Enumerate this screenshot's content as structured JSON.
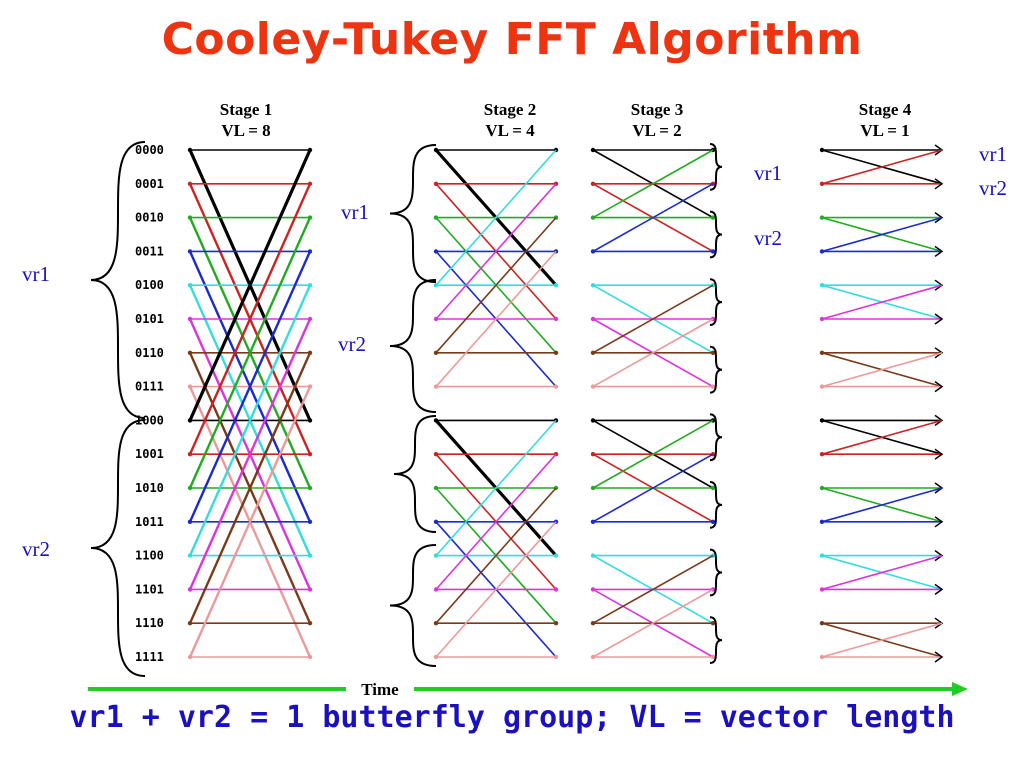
{
  "title": "Cooley-Tukey FFT Algorithm",
  "caption": "vr1 + vr2 = 1 butterfly group; VL = vector length",
  "time_label": "Time",
  "colors": {
    "title": "#ee3311",
    "caption": "#1a10c0",
    "register_label": "#1a10c0",
    "time_arrow": "#22cc22",
    "row_pairs": [
      "#000000",
      "#cc2222",
      "#22aa22",
      "#1a2acc",
      "#33dddd",
      "#dd33dd",
      "#7a3a1a",
      "#ee9999"
    ]
  },
  "index_labels": [
    "0000",
    "0001",
    "0010",
    "0011",
    "0100",
    "0101",
    "0110",
    "0111",
    "1000",
    "1001",
    "1010",
    "1011",
    "1100",
    "1101",
    "1110",
    "1111"
  ],
  "stages": [
    {
      "title": "Stage 1",
      "vl": "VL = 8",
      "butterfly_span": 8
    },
    {
      "title": "Stage 2",
      "vl": "VL = 4",
      "butterfly_span": 4
    },
    {
      "title": "Stage 3",
      "vl": "VL = 2",
      "butterfly_span": 2
    },
    {
      "title": "Stage 4",
      "vl": "VL = 1",
      "butterfly_span": 1
    }
  ],
  "register_labels": {
    "stage1": [
      "vr1",
      "vr2"
    ],
    "stage2": [
      "vr1",
      "vr2"
    ],
    "stage3": [
      "vr1",
      "vr2"
    ],
    "stage4": [
      "vr1",
      "vr2"
    ]
  }
}
